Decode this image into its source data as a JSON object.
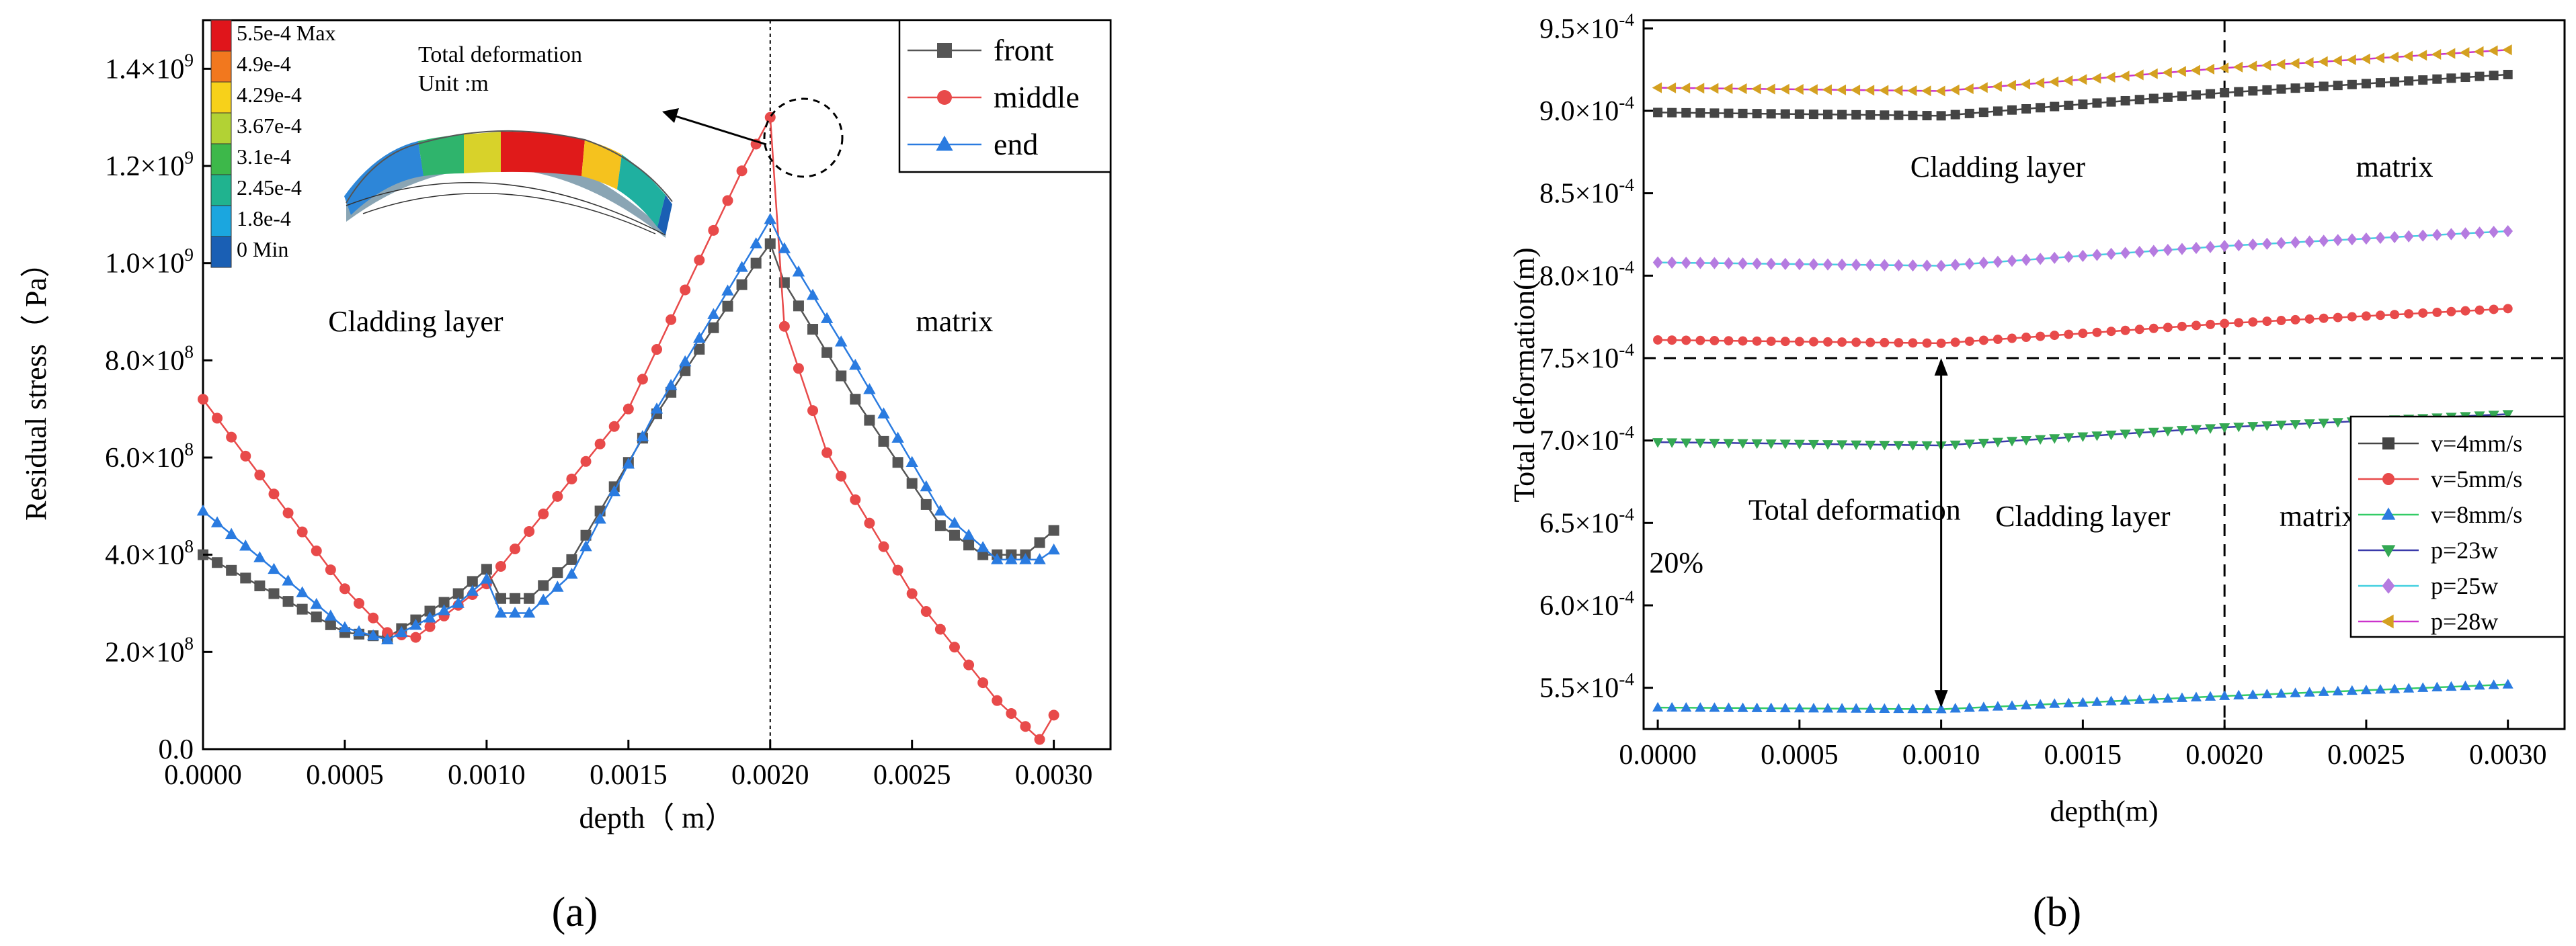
{
  "chart_data": [
    {
      "id": "a",
      "panel_label": "(a)",
      "type": "line",
      "xlabel": "depth（ m）",
      "ylabel": "Residual stress（ Pa）",
      "xlim": [
        0,
        0.0032
      ],
      "ylim": [
        0,
        1500000000.0
      ],
      "x_ticks": [
        {
          "v": 0,
          "label": "0.0000"
        },
        {
          "v": 0.0005,
          "label": "0.0005"
        },
        {
          "v": 0.001,
          "label": "0.0010"
        },
        {
          "v": 0.0015,
          "label": "0.0015"
        },
        {
          "v": 0.002,
          "label": "0.0020"
        },
        {
          "v": 0.0025,
          "label": "0.0025"
        },
        {
          "v": 0.003,
          "label": "0.0030"
        }
      ],
      "y_ticks": [
        {
          "v": 0,
          "label": "0.0"
        },
        {
          "v": 200000000.0,
          "label": "2.0×10",
          "exp": "8"
        },
        {
          "v": 400000000.0,
          "label": "4.0×10",
          "exp": "8"
        },
        {
          "v": 600000000.0,
          "label": "6.0×10",
          "exp": "8"
        },
        {
          "v": 800000000.0,
          "label": "8.0×10",
          "exp": "8"
        },
        {
          "v": 1000000000.0,
          "label": "1.0×10",
          "exp": "9"
        },
        {
          "v": 1200000000.0,
          "label": "1.2×10",
          "exp": "9"
        },
        {
          "v": 1400000000.0,
          "label": "1.4×10",
          "exp": "9"
        }
      ],
      "annotations": [
        {
          "id": "clad",
          "text": "Cladding layer",
          "x": 0.00075,
          "y": 860000000.0
        },
        {
          "id": "matrix",
          "text": "matrix",
          "x": 0.00265,
          "y": 860000000.0
        }
      ],
      "vline_x": 0.002,
      "legend": {
        "position": "top-right",
        "entries": [
          "front",
          "middle",
          "end"
        ]
      },
      "series": [
        {
          "name": "front",
          "color": "#555555",
          "marker": "square",
          "keyframes": [
            [
              0.0,
              400000000.0
            ],
            [
              0.0005,
              240000000.0
            ],
            [
              0.00065,
              230000000.0
            ],
            [
              0.0009,
              320000000.0
            ],
            [
              0.001,
              370000000.0
            ],
            [
              0.00105,
              310000000.0
            ],
            [
              0.00115,
              310000000.0
            ],
            [
              0.0013,
              390000000.0
            ],
            [
              0.0016,
              690000000.0
            ],
            [
              0.00195,
              1000000000.0
            ],
            [
              0.002,
              1040000000.0
            ],
            [
              0.00205,
              960000000.0
            ],
            [
              0.0023,
              720000000.0
            ],
            [
              0.0026,
              460000000.0
            ],
            [
              0.00275,
              400000000.0
            ],
            [
              0.0029,
              400000000.0
            ],
            [
              0.003,
              450000000.0
            ]
          ]
        },
        {
          "name": "middle",
          "color": "#e84a4a",
          "marker": "circle",
          "keyframes": [
            [
              0.0,
              720000000.0
            ],
            [
              0.0005,
              330000000.0
            ],
            [
              0.00065,
              240000000.0
            ],
            [
              0.00075,
              230000000.0
            ],
            [
              0.001,
              340000000.0
            ],
            [
              0.0015,
              700000000.0
            ],
            [
              0.0019,
              1190000000.0
            ],
            [
              0.002,
              1300000000.0
            ],
            [
              0.00205,
              870000000.0
            ],
            [
              0.0022,
              610000000.0
            ],
            [
              0.0025,
              320000000.0
            ],
            [
              0.0028,
              100000000.0
            ],
            [
              0.00295,
              20000000.0
            ],
            [
              0.003,
              70000000.0
            ]
          ]
        },
        {
          "name": "end",
          "color": "#2a7be0",
          "marker": "triangle",
          "keyframes": [
            [
              0.0,
              490000000.0
            ],
            [
              0.0005,
              250000000.0
            ],
            [
              0.00065,
              225000000.0
            ],
            [
              0.0009,
              300000000.0
            ],
            [
              0.001,
              350000000.0
            ],
            [
              0.00105,
              280000000.0
            ],
            [
              0.00115,
              280000000.0
            ],
            [
              0.0013,
              360000000.0
            ],
            [
              0.0016,
              700000000.0
            ],
            [
              0.00195,
              1040000000.0
            ],
            [
              0.002,
              1090000000.0
            ],
            [
              0.00205,
              1030000000.0
            ],
            [
              0.0023,
              790000000.0
            ],
            [
              0.0026,
              490000000.0
            ],
            [
              0.0028,
              390000000.0
            ],
            [
              0.00295,
              390000000.0
            ],
            [
              0.003,
              410000000.0
            ]
          ]
        }
      ]
    },
    {
      "id": "b",
      "panel_label": "(b)",
      "type": "line",
      "xlabel": "depth(m)",
      "ylabel": "Total deformation(m)",
      "xlim": [
        -5e-05,
        0.0032
      ],
      "ylim": [
        0.000525,
        0.000955
      ],
      "x_ticks": [
        {
          "v": 0,
          "label": "0.0000"
        },
        {
          "v": 0.0005,
          "label": "0.0005"
        },
        {
          "v": 0.001,
          "label": "0.0010"
        },
        {
          "v": 0.0015,
          "label": "0.0015"
        },
        {
          "v": 0.002,
          "label": "0.0020"
        },
        {
          "v": 0.0025,
          "label": "0.0025"
        },
        {
          "v": 0.003,
          "label": "0.0030"
        }
      ],
      "y_ticks": [
        {
          "v": 0.00055,
          "label": "5.5×10",
          "exp": "-4"
        },
        {
          "v": 0.0006,
          "label": "6.0×10",
          "exp": "-4"
        },
        {
          "v": 0.00065,
          "label": "6.5×10",
          "exp": "-4"
        },
        {
          "v": 0.0007,
          "label": "7.0×10",
          "exp": "-4"
        },
        {
          "v": 0.00075,
          "label": "7.5×10",
          "exp": "-4"
        },
        {
          "v": 0.0008,
          "label": "8.0×10",
          "exp": "-4"
        },
        {
          "v": 0.00085,
          "label": "8.5×10",
          "exp": "-4"
        },
        {
          "v": 0.0009,
          "label": "9.0×10",
          "exp": "-4"
        },
        {
          "v": 0.00095,
          "label": "9.5×10",
          "exp": "-4"
        }
      ],
      "annotations": [
        {
          "id": "clad1",
          "text": "Cladding layer",
          "x": 0.0012,
          "y": 0.00086
        },
        {
          "id": "matrix1",
          "text": "matrix",
          "x": 0.0026,
          "y": 0.00086
        },
        {
          "id": "clad2",
          "text": "Cladding layer",
          "x": 0.0015,
          "y": 0.000648
        },
        {
          "id": "matrix2",
          "text": "matrix",
          "x": 0.00233,
          "y": 0.000648
        },
        {
          "id": "td1",
          "text": "Total deformation",
          "x": 0.00032,
          "y": 0.000652
        },
        {
          "id": "td2",
          "text": "20%",
          "x": -3e-05,
          "y": 0.00062
        }
      ],
      "vline_x": 0.002,
      "hline_y": 0.00075,
      "arrow": {
        "x": 0.001,
        "y_from": 0.000538,
        "y_to": 0.00075
      },
      "legend": {
        "position": "bottom-right",
        "entries": [
          "v=4mm/s",
          "v=5mm/s",
          "v=8mm/s",
          "p=23w",
          "p=25w",
          "p=28w"
        ]
      },
      "series": [
        {
          "name": "v=4mm/s",
          "color": "#444444",
          "line_color": "#444444",
          "marker": "square",
          "keyframes": [
            [
              0,
              0.000899
            ],
            [
              0.001,
              0.000897
            ],
            [
              0.002,
              0.000911
            ],
            [
              0.003,
              0.000922
            ]
          ]
        },
        {
          "name": "v=5mm/s",
          "color": "#e84a4a",
          "line_color": "#e84a4a",
          "marker": "circle",
          "keyframes": [
            [
              0,
              0.000761
            ],
            [
              0.001,
              0.000759
            ],
            [
              0.002,
              0.000771
            ],
            [
              0.003,
              0.00078
            ]
          ]
        },
        {
          "name": "v=8mm/s",
          "color": "#2a7be0",
          "line_color": "#33cc66",
          "marker": "triangle",
          "keyframes": [
            [
              0,
              0.000538
            ],
            [
              0.001,
              0.000537
            ],
            [
              0.002,
              0.000545
            ],
            [
              0.003,
              0.000552
            ]
          ]
        },
        {
          "name": "p=23w",
          "color": "#34a853",
          "line_color": "#3a3aaa",
          "marker": "triangle-down",
          "keyframes": [
            [
              0,
              0.000699
            ],
            [
              0.001,
              0.000697
            ],
            [
              0.002,
              0.000708
            ],
            [
              0.003,
              0.000716
            ]
          ]
        },
        {
          "name": "p=25w",
          "color": "#b57be0",
          "line_color": "#44d0e0",
          "marker": "diamond",
          "keyframes": [
            [
              0,
              0.000808
            ],
            [
              0.001,
              0.000806
            ],
            [
              0.002,
              0.000818
            ],
            [
              0.003,
              0.000827
            ]
          ]
        },
        {
          "name": "p=28w",
          "color": "#d4a020",
          "line_color": "#cc33cc",
          "marker": "triangle-left",
          "keyframes": [
            [
              0,
              0.000914
            ],
            [
              0.001,
              0.000912
            ],
            [
              0.002,
              0.000926
            ],
            [
              0.003,
              0.000937
            ]
          ]
        }
      ]
    }
  ],
  "inset": {
    "title": "Total deformation",
    "unit": "Unit :m",
    "legend": [
      {
        "label": "5.5e-4 Max",
        "color": "#e0151b"
      },
      {
        "label": "4.9e-4",
        "color": "#f2781e"
      },
      {
        "label": "4.29e-4",
        "color": "#f7d11a"
      },
      {
        "label": "3.67e-4",
        "color": "#b2d234"
      },
      {
        "label": "3.1e-4",
        "color": "#3db84a"
      },
      {
        "label": "2.45e-4",
        "color": "#20b38f"
      },
      {
        "label": "1.8e-4",
        "color": "#1ba6df"
      },
      {
        "label": "0 Min",
        "color": "#1a5fb4"
      }
    ]
  }
}
